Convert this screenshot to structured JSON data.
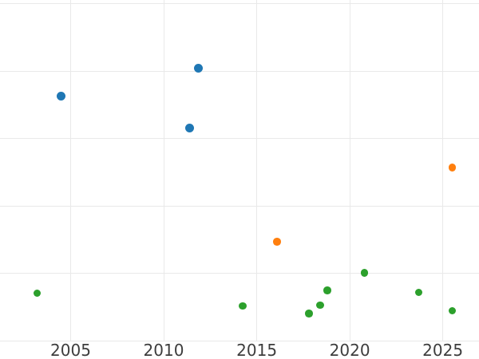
{
  "chart_data": {
    "type": "scatter",
    "title": "",
    "xlabel": "",
    "ylabel": "",
    "grid": true,
    "legend": false,
    "x_domain": [
      2001.2,
      2026.95
    ],
    "y_domain": [
      0,
      5.055
    ],
    "x_ticks": [
      2005,
      2010,
      2015,
      2020,
      2025
    ],
    "x_tick_labels": [
      "2005",
      "2010",
      "2015",
      "2020",
      "2025"
    ],
    "y_gridlines": [
      0,
      1,
      2,
      3,
      4,
      5
    ],
    "y_tick_labels": [],
    "colors": {
      "background": "#ffffff",
      "gridline": "#e9e9e9",
      "tick_label": "#3d3d3d"
    },
    "series": [
      {
        "name": "blue",
        "color": "#1f77b4",
        "marker_diameter": 11,
        "points": [
          {
            "x": 2004.5,
            "y": 3.63
          },
          {
            "x": 2011.4,
            "y": 3.16
          },
          {
            "x": 2011.85,
            "y": 4.04
          }
        ]
      },
      {
        "name": "orange",
        "color": "#ff7f0e",
        "marker_diameter": 9.5,
        "points": [
          {
            "x": 2016.1,
            "y": 1.47
          },
          {
            "x": 2025.5,
            "y": 2.57
          }
        ]
      },
      {
        "name": "green",
        "color": "#2ca02c",
        "marker_diameter": 9.5,
        "points": [
          {
            "x": 2003.2,
            "y": 0.71
          },
          {
            "x": 2014.25,
            "y": 0.52
          },
          {
            "x": 2017.8,
            "y": 0.41
          },
          {
            "x": 2018.4,
            "y": 0.53
          },
          {
            "x": 2018.8,
            "y": 0.75
          },
          {
            "x": 2020.8,
            "y": 1.01
          },
          {
            "x": 2023.7,
            "y": 0.72
          },
          {
            "x": 2025.5,
            "y": 0.45
          }
        ]
      }
    ]
  }
}
